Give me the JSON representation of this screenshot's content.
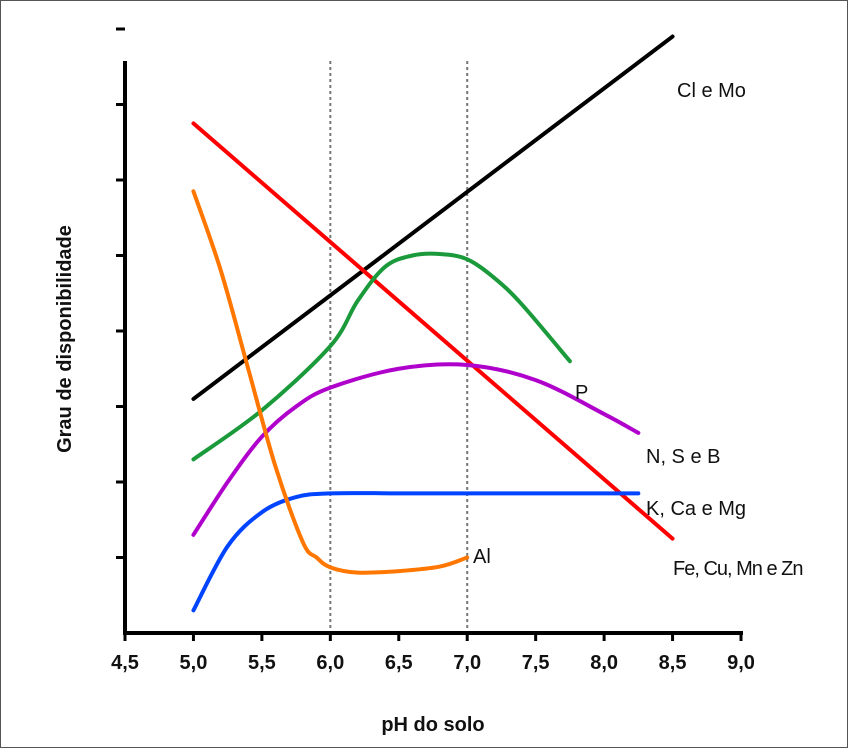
{
  "chart_data": {
    "type": "line",
    "title": "",
    "xlabel": "pH do solo",
    "ylabel": "Grau de disponibilidade",
    "xlim": [
      4.5,
      9.0
    ],
    "ylim": [
      0,
      8
    ],
    "x_ticks": [
      4.5,
      5.0,
      5.5,
      6.0,
      6.5,
      7.0,
      7.5,
      8.0,
      8.5,
      9.0
    ],
    "x_tick_labels": [
      "4,5",
      "5,0",
      "5,5",
      "6,0",
      "6,5",
      "7,0",
      "7,5",
      "8,0",
      "8,5",
      "9,0"
    ],
    "y_ticks": [
      1,
      2,
      3,
      4,
      5,
      6,
      7,
      8
    ],
    "y_tick_labels_shown": false,
    "reference_lines_x": [
      6.0,
      7.0
    ],
    "grid": false,
    "legend": "none (labels placed at line ends)",
    "series": [
      {
        "name": "Cl e Mo",
        "color": "#000000",
        "x": [
          5.0,
          8.5
        ],
        "y": [
          3.1,
          7.9
        ]
      },
      {
        "name": "Fe, Cu, Mn e Zn",
        "color": "#ff0000",
        "x": [
          5.0,
          8.5
        ],
        "y": [
          6.75,
          1.25
        ]
      },
      {
        "name": "P",
        "color": "#1a9a3a",
        "x": [
          5.0,
          5.5,
          6.0,
          6.2,
          6.4,
          6.6,
          6.8,
          7.0,
          7.2,
          7.4,
          7.75
        ],
        "y": [
          2.3,
          2.95,
          3.8,
          4.4,
          4.85,
          5.0,
          5.02,
          4.95,
          4.7,
          4.35,
          3.6
        ]
      },
      {
        "name": "N, S e B",
        "color": "#b000cc",
        "x": [
          5.0,
          5.25,
          5.5,
          5.75,
          6.0,
          6.5,
          7.0,
          7.5,
          8.0,
          8.25
        ],
        "y": [
          1.3,
          2.0,
          2.6,
          3.0,
          3.25,
          3.5,
          3.55,
          3.35,
          2.9,
          2.65
        ]
      },
      {
        "name": "K, Ca e Mg",
        "color": "#0044ff",
        "x": [
          5.0,
          5.25,
          5.5,
          5.75,
          6.0,
          6.5,
          7.0,
          7.5,
          8.0,
          8.25
        ],
        "y": [
          0.3,
          1.15,
          1.6,
          1.8,
          1.85,
          1.85,
          1.85,
          1.85,
          1.85,
          1.85
        ]
      },
      {
        "name": "Al",
        "color": "#ff7700",
        "x": [
          5.0,
          5.2,
          5.4,
          5.6,
          5.8,
          5.9,
          6.0,
          6.2,
          6.5,
          6.8,
          7.0
        ],
        "y": [
          5.85,
          4.8,
          3.5,
          2.2,
          1.2,
          1.0,
          0.87,
          0.8,
          0.82,
          0.88,
          1.0
        ]
      }
    ]
  }
}
